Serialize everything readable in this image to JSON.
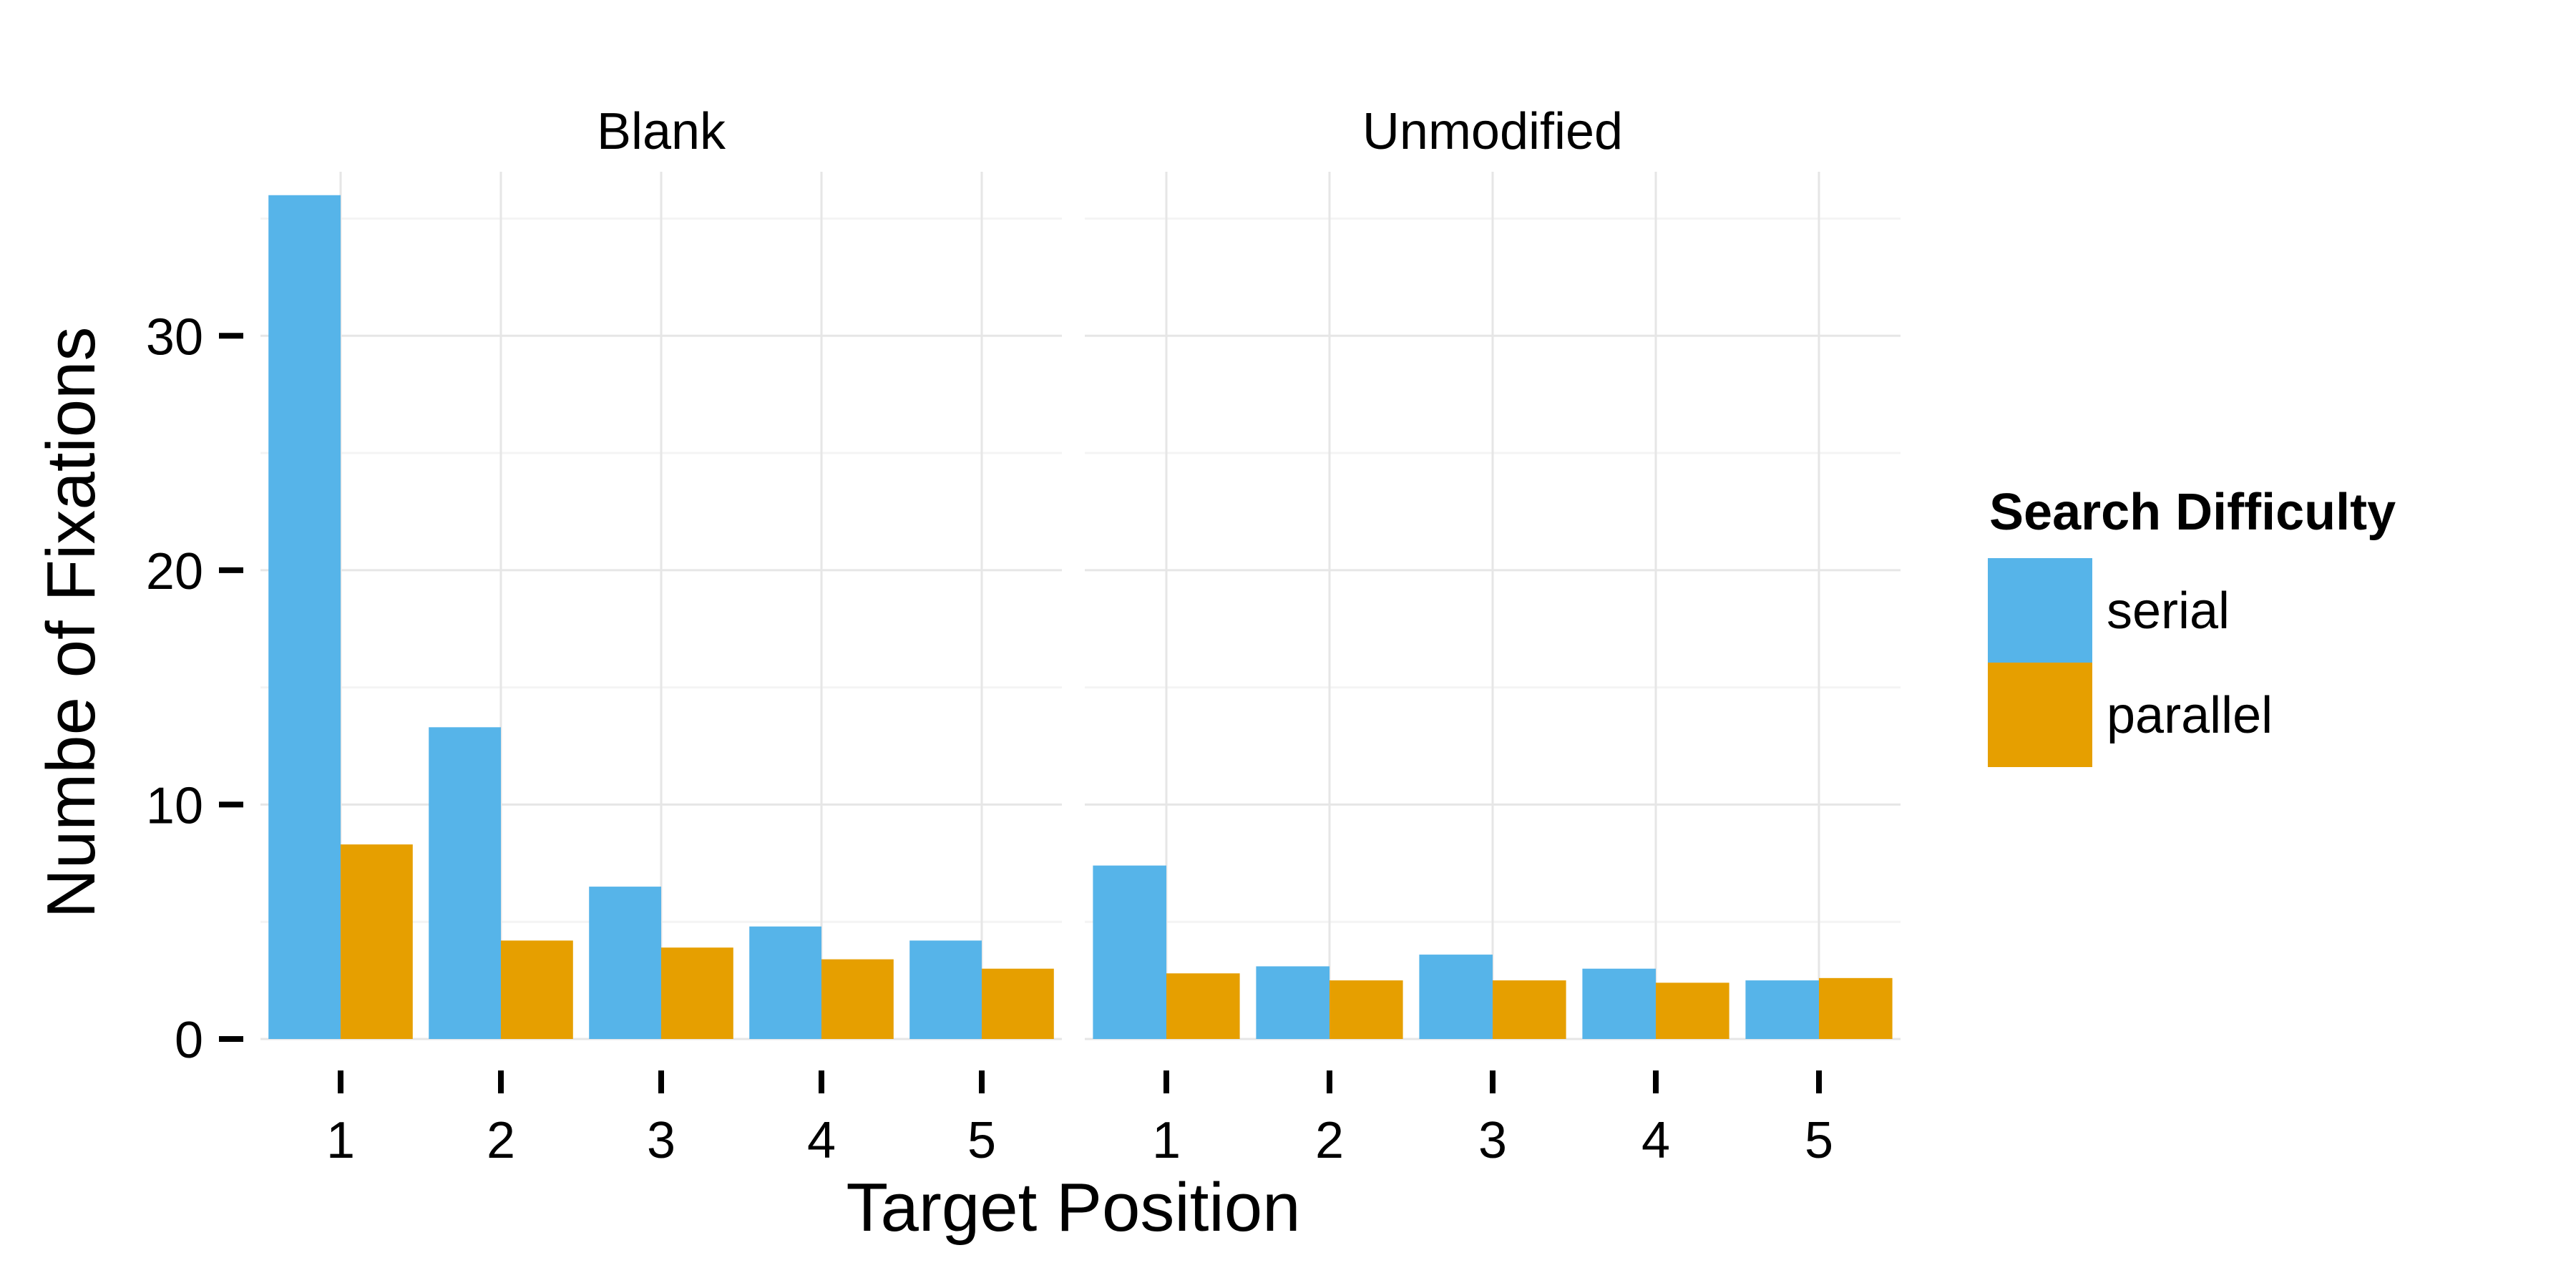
{
  "chart_data": {
    "type": "bar",
    "xlabel": "Target Position",
    "ylabel": "Numbe of Fixations",
    "ylim": [
      0,
      37
    ],
    "yticks": [
      0,
      10,
      20,
      30
    ],
    "grid": true,
    "legend": {
      "title": "Search Difficulty",
      "placement": "right"
    },
    "categories": [
      "1",
      "2",
      "3",
      "4",
      "5"
    ],
    "panels": [
      {
        "name": "Blank",
        "series": [
          {
            "name": "serial",
            "values": [
              36.0,
              13.3,
              6.5,
              4.8,
              4.2
            ]
          },
          {
            "name": "parallel",
            "values": [
              8.3,
              4.2,
              3.9,
              3.4,
              3.0
            ]
          }
        ]
      },
      {
        "name": "Unmodified",
        "series": [
          {
            "name": "serial",
            "values": [
              7.4,
              3.1,
              3.6,
              3.0,
              2.5
            ]
          },
          {
            "name": "parallel",
            "values": [
              2.8,
              2.5,
              2.5,
              2.4,
              2.6
            ]
          }
        ]
      }
    ],
    "colors": {
      "serial": "#56b4e9",
      "parallel": "#e69f00"
    }
  }
}
